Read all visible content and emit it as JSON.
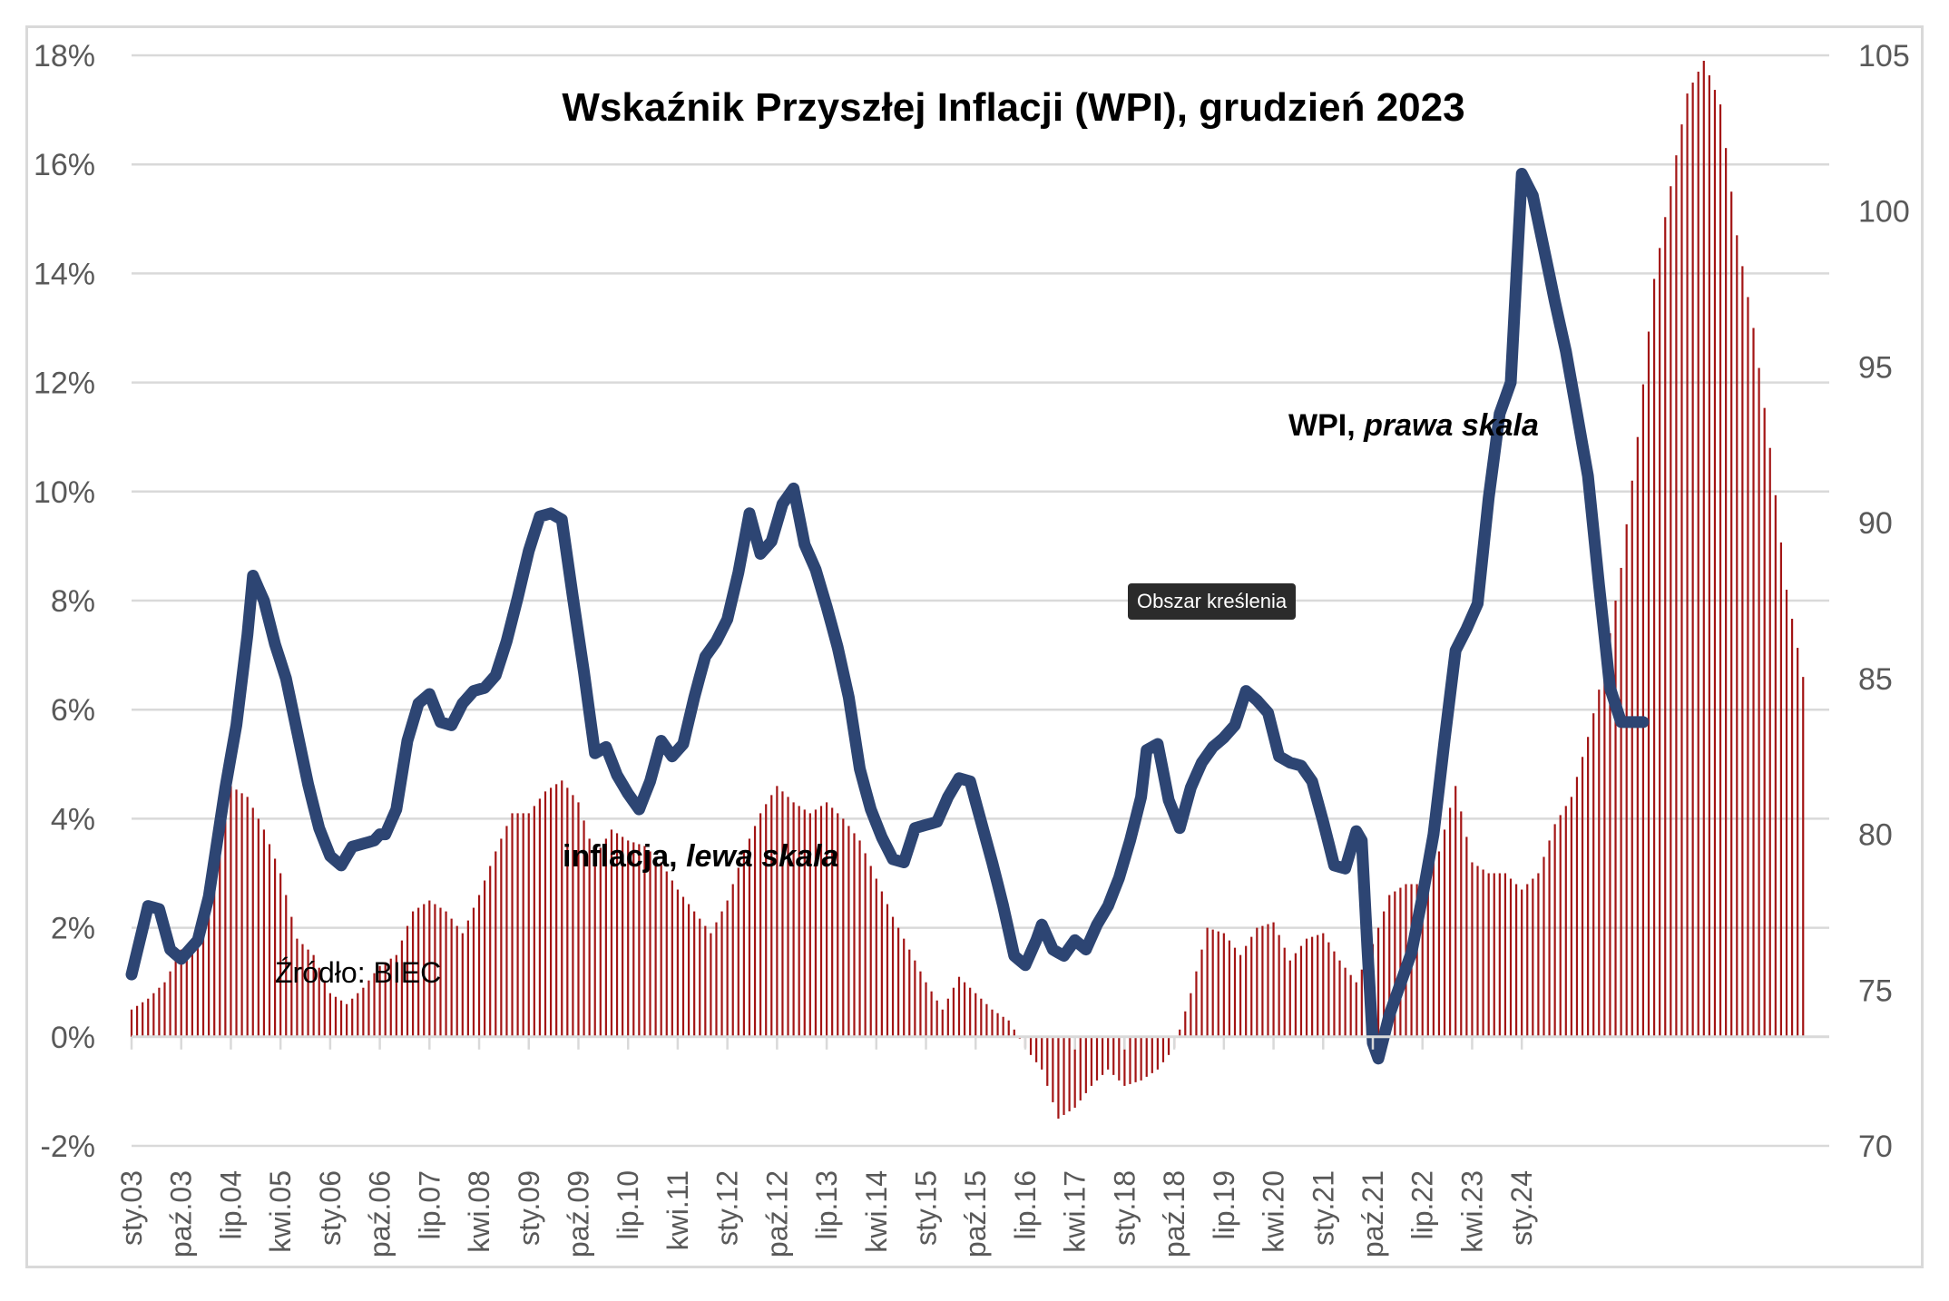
{
  "chart_data": {
    "type": "bar+line",
    "title": "Wskaźnik Przyszłej Inflacji (WPI), grudzień 2023",
    "source": "Źródło: BIEC",
    "left_axis": {
      "ylim": [
        -2,
        18
      ],
      "ticks": [
        "-2%",
        "0%",
        "2%",
        "4%",
        "6%",
        "8%",
        "10%",
        "12%",
        "14%",
        "16%",
        "18%"
      ],
      "tick_values": [
        -2,
        0,
        2,
        4,
        6,
        8,
        10,
        12,
        14,
        16,
        18
      ]
    },
    "right_axis": {
      "ylim": [
        70,
        105
      ],
      "ticks": [
        "70",
        "75",
        "80",
        "85",
        "90",
        "95",
        "100",
        "105"
      ],
      "tick_values": [
        70,
        75,
        80,
        85,
        90,
        95,
        100,
        105
      ]
    },
    "x_ticks": [
      "sty.03",
      "paź.03",
      "lip.04",
      "kwi.05",
      "sty.06",
      "paź.06",
      "lip.07",
      "kwi.08",
      "sty.09",
      "paź.09",
      "lip.10",
      "kwi.11",
      "sty.12",
      "paź.12",
      "lip.13",
      "kwi.14",
      "sty.15",
      "paź.15",
      "lip.16",
      "kwi.17",
      "sty.18",
      "paź.18",
      "lip.19",
      "kwi.20",
      "sty.21",
      "paź.21",
      "lip.22",
      "kwi.23",
      "sty.24"
    ],
    "x_start": "2003-01",
    "grid": true,
    "series": [
      {
        "name": "inflacja, lewa skala",
        "axis": "left",
        "type": "bar",
        "color": "#a31515",
        "anchors": [
          [
            0,
            0.5
          ],
          [
            3,
            0.7
          ],
          [
            6,
            1.0
          ],
          [
            9,
            1.6
          ],
          [
            12,
            1.7
          ],
          [
            15,
            3.4
          ],
          [
            18,
            4.6
          ],
          [
            21,
            4.4
          ],
          [
            24,
            3.8
          ],
          [
            27,
            3.0
          ],
          [
            30,
            1.8
          ],
          [
            33,
            1.5
          ],
          [
            36,
            0.8
          ],
          [
            39,
            0.6
          ],
          [
            42,
            0.9
          ],
          [
            45,
            1.3
          ],
          [
            48,
            1.5
          ],
          [
            51,
            2.3
          ],
          [
            54,
            2.5
          ],
          [
            57,
            2.3
          ],
          [
            60,
            1.9
          ],
          [
            63,
            2.6
          ],
          [
            66,
            3.4
          ],
          [
            69,
            4.1
          ],
          [
            72,
            4.1
          ],
          [
            75,
            4.5
          ],
          [
            78,
            4.7
          ],
          [
            81,
            4.3
          ],
          [
            84,
            3.3
          ],
          [
            87,
            3.8
          ],
          [
            90,
            3.6
          ],
          [
            93,
            3.5
          ],
          [
            96,
            3.2
          ],
          [
            99,
            2.7
          ],
          [
            102,
            2.3
          ],
          [
            105,
            1.9
          ],
          [
            108,
            2.5
          ],
          [
            111,
            3.4
          ],
          [
            114,
            4.1
          ],
          [
            117,
            4.6
          ],
          [
            120,
            4.3
          ],
          [
            123,
            4.1
          ],
          [
            126,
            4.3
          ],
          [
            129,
            4.0
          ],
          [
            132,
            3.6
          ],
          [
            135,
            2.9
          ],
          [
            138,
            2.2
          ],
          [
            141,
            1.6
          ],
          [
            144,
            1.0
          ],
          [
            147,
            0.5
          ],
          [
            150,
            1.1
          ],
          [
            153,
            0.8
          ],
          [
            156,
            0.5
          ],
          [
            159,
            0.3
          ],
          [
            162,
            -0.2
          ],
          [
            165,
            -0.6
          ],
          [
            168,
            -1.5
          ],
          [
            171,
            -1.3
          ],
          [
            174,
            -0.9
          ],
          [
            177,
            -0.6
          ],
          [
            180,
            -0.9
          ],
          [
            183,
            -0.8
          ],
          [
            186,
            -0.6
          ],
          [
            189,
            -0.2
          ],
          [
            192,
            0.8
          ],
          [
            195,
            2.0
          ],
          [
            198,
            1.9
          ],
          [
            201,
            1.5
          ],
          [
            204,
            2.0
          ],
          [
            207,
            2.1
          ],
          [
            210,
            1.4
          ],
          [
            213,
            1.8
          ],
          [
            216,
            1.9
          ],
          [
            219,
            1.4
          ],
          [
            222,
            1.0
          ],
          [
            225,
            1.7
          ],
          [
            228,
            2.6
          ],
          [
            231,
            2.8
          ],
          [
            234,
            2.8
          ],
          [
            237,
            3.4
          ],
          [
            240,
            4.6
          ],
          [
            243,
            3.2
          ],
          [
            246,
            3.0
          ],
          [
            249,
            3.0
          ],
          [
            252,
            2.7
          ],
          [
            255,
            3.0
          ],
          [
            258,
            3.9
          ],
          [
            261,
            4.4
          ],
          [
            264,
            5.5
          ],
          [
            267,
            6.8
          ],
          [
            270,
            8.6
          ],
          [
            273,
            11.0
          ],
          [
            276,
            13.9
          ],
          [
            279,
            15.6
          ],
          [
            282,
            17.3
          ],
          [
            285,
            17.9
          ],
          [
            288,
            17.1
          ],
          [
            291,
            14.7
          ],
          [
            294,
            13.0
          ],
          [
            297,
            10.8
          ],
          [
            300,
            8.2
          ],
          [
            303,
            6.6
          ]
        ]
      },
      {
        "name": "WPI, prawa skala",
        "axis": "right",
        "type": "line",
        "color": "#2d4573",
        "anchors": [
          [
            0,
            75.5
          ],
          [
            3,
            77.7
          ],
          [
            5,
            77.6
          ],
          [
            7,
            76.3
          ],
          [
            9,
            76.0
          ],
          [
            12,
            76.6
          ],
          [
            14,
            78.0
          ],
          [
            17,
            81.5
          ],
          [
            19,
            83.5
          ],
          [
            21,
            86.4
          ],
          [
            22,
            88.3
          ],
          [
            24,
            87.5
          ],
          [
            26,
            86.1
          ],
          [
            28,
            85.0
          ],
          [
            30,
            83.3
          ],
          [
            32,
            81.6
          ],
          [
            34,
            80.2
          ],
          [
            36,
            79.3
          ],
          [
            38,
            79.0
          ],
          [
            40,
            79.6
          ],
          [
            42,
            79.7
          ],
          [
            44,
            79.8
          ],
          [
            45,
            80.0
          ],
          [
            46,
            80.0
          ],
          [
            48,
            80.8
          ],
          [
            50,
            83.0
          ],
          [
            52,
            84.2
          ],
          [
            54,
            84.5
          ],
          [
            56,
            83.6
          ],
          [
            58,
            83.5
          ],
          [
            60,
            84.2
          ],
          [
            62,
            84.6
          ],
          [
            64,
            84.7
          ],
          [
            66,
            85.1
          ],
          [
            68,
            86.2
          ],
          [
            70,
            87.6
          ],
          [
            72,
            89.1
          ],
          [
            74,
            90.2
          ],
          [
            76,
            90.3
          ],
          [
            78,
            90.1
          ],
          [
            80,
            87.6
          ],
          [
            82,
            85.2
          ],
          [
            84,
            82.6
          ],
          [
            86,
            82.8
          ],
          [
            88,
            81.9
          ],
          [
            90,
            81.3
          ],
          [
            92,
            80.8
          ],
          [
            94,
            81.7
          ],
          [
            96,
            83.0
          ],
          [
            98,
            82.5
          ],
          [
            100,
            82.9
          ],
          [
            102,
            84.4
          ],
          [
            104,
            85.7
          ],
          [
            106,
            86.2
          ],
          [
            108,
            86.9
          ],
          [
            110,
            88.4
          ],
          [
            112,
            90.3
          ],
          [
            114,
            89.0
          ],
          [
            116,
            89.4
          ],
          [
            118,
            90.6
          ],
          [
            120,
            91.1
          ],
          [
            122,
            89.3
          ],
          [
            124,
            88.5
          ],
          [
            126,
            87.3
          ],
          [
            128,
            86.0
          ],
          [
            130,
            84.4
          ],
          [
            132,
            82.1
          ],
          [
            134,
            80.8
          ],
          [
            136,
            79.9
          ],
          [
            138,
            79.2
          ],
          [
            140,
            79.1
          ],
          [
            142,
            80.2
          ],
          [
            144,
            80.3
          ],
          [
            146,
            80.4
          ],
          [
            148,
            81.2
          ],
          [
            150,
            81.8
          ],
          [
            152,
            81.7
          ],
          [
            154,
            80.4
          ],
          [
            156,
            79.1
          ],
          [
            158,
            77.7
          ],
          [
            160,
            76.1
          ],
          [
            162,
            75.8
          ],
          [
            164,
            76.6
          ],
          [
            165,
            77.1
          ],
          [
            167,
            76.3
          ],
          [
            169,
            76.1
          ],
          [
            171,
            76.6
          ],
          [
            173,
            76.3
          ],
          [
            175,
            77.1
          ],
          [
            177,
            77.7
          ],
          [
            179,
            78.6
          ],
          [
            181,
            79.8
          ],
          [
            183,
            81.2
          ],
          [
            184,
            82.7
          ],
          [
            186,
            82.9
          ],
          [
            188,
            81.1
          ],
          [
            190,
            80.2
          ],
          [
            192,
            81.5
          ],
          [
            194,
            82.3
          ],
          [
            196,
            82.8
          ],
          [
            198,
            83.1
          ],
          [
            200,
            83.5
          ],
          [
            202,
            84.6
          ],
          [
            204,
            84.3
          ],
          [
            206,
            83.9
          ],
          [
            208,
            82.5
          ],
          [
            210,
            82.3
          ],
          [
            212,
            82.2
          ],
          [
            214,
            81.7
          ],
          [
            216,
            80.4
          ],
          [
            218,
            79.0
          ],
          [
            220,
            78.9
          ],
          [
            222,
            80.1
          ],
          [
            223,
            79.8
          ],
          [
            224,
            76.4
          ],
          [
            225,
            73.3
          ],
          [
            226,
            72.8
          ],
          [
            228,
            74.2
          ],
          [
            230,
            75.2
          ],
          [
            232,
            76.2
          ],
          [
            234,
            78.0
          ],
          [
            236,
            80.0
          ],
          [
            238,
            83.0
          ],
          [
            240,
            85.9
          ],
          [
            242,
            86.6
          ],
          [
            244,
            87.4
          ],
          [
            246,
            90.8
          ],
          [
            248,
            93.5
          ],
          [
            250,
            94.5
          ],
          [
            252,
            101.2
          ],
          [
            254,
            100.5
          ],
          [
            256,
            98.8
          ],
          [
            258,
            97.1
          ],
          [
            260,
            95.5
          ],
          [
            262,
            93.5
          ],
          [
            264,
            91.5
          ],
          [
            266,
            88.0
          ],
          [
            268,
            84.7
          ],
          [
            270,
            83.6
          ],
          [
            272,
            83.6
          ],
          [
            274,
            83.6
          ]
        ]
      }
    ],
    "annotations": {
      "wpi_label_plain": "WPI, ",
      "wpi_label_italic": "prawa skala",
      "inflacja_label_plain": "inflacja, ",
      "inflacja_label_italic": "lewa skala"
    }
  },
  "tooltip": "Obszar kreślenia",
  "colors": {
    "bars": "#a31515",
    "line": "#2d4573",
    "grid": "#d9d9d9"
  }
}
